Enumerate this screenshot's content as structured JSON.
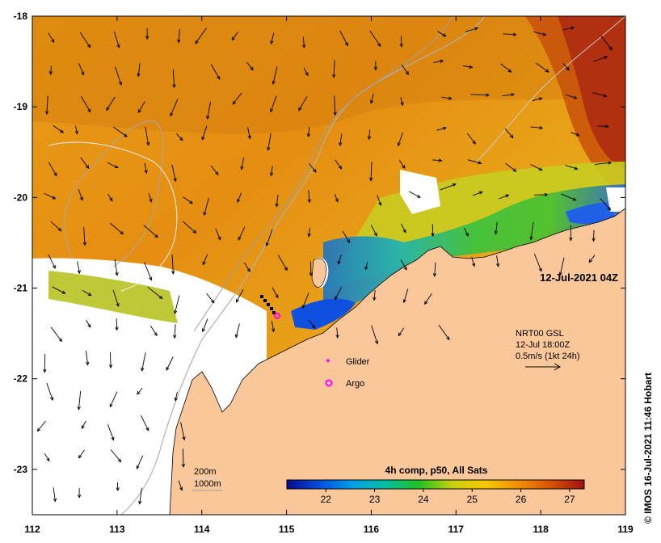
{
  "map": {
    "lon_range": [
      112,
      119
    ],
    "lat_range": [
      -23.5,
      -18
    ],
    "x_ticks": [
      "112",
      "113",
      "114",
      "115",
      "116",
      "117",
      "118",
      "119"
    ],
    "y_ticks": [
      "-18",
      "-19",
      "-20",
      "-21",
      "-22",
      "-23"
    ],
    "timestamp": "12-Jul-2021 04Z",
    "credit": "© IMOS 16-Jul-2021 11:46 Hobart",
    "colors": {
      "land": "#f9c79a",
      "cloud": "#ffffff",
      "ocean_warm": "#e08a10",
      "ocean_cool": "#2aa0d8"
    }
  },
  "current_legend": {
    "line1": "NRT00 GSL",
    "line2": "12-Jul 18:00Z",
    "line3": "0.5m/s (1kt 24h)"
  },
  "markers": {
    "glider_label": "Glider",
    "argo_label": "Argo",
    "glider_color": "#ff00ff",
    "argo_color": "#ff00ff"
  },
  "isobaths": {
    "label_200": "200m",
    "label_1000": "1000m"
  },
  "colorbar": {
    "title": "4h comp, p50, All Sats",
    "ticks": [
      "22",
      "23",
      "24",
      "25",
      "26",
      "27"
    ],
    "range": [
      21.2,
      27.3
    ],
    "stops": [
      "#0a0a8c",
      "#0050e0",
      "#00a0e8",
      "#00c0a0",
      "#20c020",
      "#c8d010",
      "#f8c800",
      "#f09000",
      "#d85000",
      "#a01010"
    ]
  }
}
